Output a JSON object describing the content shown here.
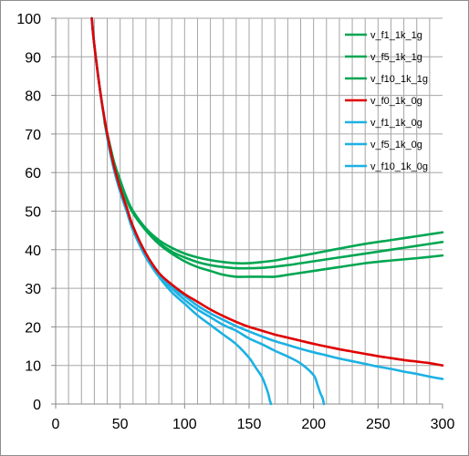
{
  "chart_data": {
    "type": "line",
    "title": "",
    "xlabel": "",
    "ylabel": "",
    "xlim": [
      0,
      300
    ],
    "ylim": [
      0,
      100
    ],
    "x_ticks": [
      0,
      50,
      100,
      150,
      200,
      250,
      300
    ],
    "y_ticks": [
      0,
      10,
      20,
      30,
      40,
      50,
      60,
      70,
      80,
      90,
      100
    ],
    "minor_x_step": 10,
    "grid": true,
    "legend_position": "top-right",
    "series": [
      {
        "name": "v_f1_1k_1g",
        "color": "#00A651",
        "x": [
          38,
          45,
          50,
          55,
          60,
          70,
          80,
          90,
          100,
          110,
          120,
          130,
          140,
          150,
          160,
          170,
          180,
          190,
          200,
          220,
          240,
          260,
          280,
          300
        ],
        "y": [
          73,
          63,
          58,
          53,
          49.5,
          45,
          41.5,
          39,
          37,
          35.5,
          34.5,
          33.5,
          33,
          33,
          33,
          33,
          33.5,
          34,
          34.5,
          35.5,
          36.5,
          37.2,
          37.8,
          38.5
        ]
      },
      {
        "name": "v_f5_1k_1g",
        "color": "#00A651",
        "x": [
          38,
          45,
          50,
          55,
          60,
          70,
          80,
          90,
          100,
          110,
          120,
          130,
          140,
          150,
          160,
          170,
          180,
          190,
          200,
          220,
          240,
          260,
          280,
          300
        ],
        "y": [
          73,
          63,
          58,
          53,
          49.5,
          45,
          41.8,
          39.5,
          38,
          36.8,
          36,
          35.5,
          35.2,
          35.2,
          35.3,
          35.6,
          36,
          36.5,
          37,
          38,
          39,
          40,
          41,
          42
        ]
      },
      {
        "name": "v_f10_1k_1g",
        "color": "#00A651",
        "x": [
          38,
          45,
          50,
          55,
          60,
          70,
          80,
          90,
          100,
          110,
          120,
          130,
          140,
          150,
          160,
          170,
          180,
          190,
          200,
          220,
          240,
          260,
          280,
          300
        ],
        "y": [
          73,
          63,
          58,
          53.5,
          50,
          45.5,
          42.5,
          40.5,
          39,
          38,
          37.3,
          36.8,
          36.5,
          36.5,
          36.8,
          37.2,
          37.8,
          38.4,
          39,
          40.3,
          41.5,
          42.5,
          43.5,
          44.5
        ]
      },
      {
        "name": "v_f0_1k_0g",
        "color": "#E00000",
        "x": [
          28,
          30,
          35,
          40,
          45,
          50,
          55,
          60,
          70,
          80,
          90,
          100,
          110,
          120,
          130,
          140,
          150,
          160,
          170,
          180,
          190,
          200,
          210,
          220,
          230,
          240,
          250,
          260,
          270,
          280,
          290,
          300
        ],
        "y": [
          100,
          93,
          80,
          70,
          62,
          56,
          51,
          46,
          39,
          34,
          31,
          28.5,
          26.5,
          24.5,
          22.8,
          21.3,
          20,
          19,
          18,
          17.2,
          16.4,
          15.6,
          14.9,
          14.2,
          13.6,
          13,
          12.4,
          11.9,
          11.4,
          11,
          10.6,
          10
        ]
      },
      {
        "name": "v_f1_1k_0g",
        "color": "#1CB1E4",
        "x": [
          28,
          30,
          35,
          40,
          45,
          50,
          55,
          60,
          70,
          80,
          90,
          100,
          110,
          120,
          130,
          140,
          150,
          155,
          160,
          163,
          165,
          166,
          167
        ],
        "y": [
          100,
          93,
          80,
          69,
          61,
          55,
          50,
          45,
          38,
          33,
          29,
          26,
          23,
          20.5,
          18,
          15.5,
          12,
          9.5,
          7,
          4.5,
          2.5,
          1,
          0
        ]
      },
      {
        "name": "v_f5_1k_0g",
        "color": "#1CB1E4",
        "x": [
          28,
          30,
          35,
          40,
          45,
          50,
          55,
          60,
          70,
          80,
          90,
          100,
          110,
          120,
          130,
          140,
          150,
          160,
          170,
          180,
          190,
          200,
          203,
          205,
          207,
          208
        ],
        "y": [
          100,
          93,
          80,
          69.5,
          61.5,
          55.5,
          50.5,
          46,
          38.5,
          33.5,
          30,
          27,
          24.5,
          22.5,
          20.5,
          19,
          17,
          15.5,
          13.8,
          12.3,
          10.5,
          7.5,
          5,
          3,
          1.5,
          0
        ]
      },
      {
        "name": "v_f10_1k_0g",
        "color": "#1CB1E4",
        "x": [
          28,
          30,
          35,
          40,
          45,
          50,
          55,
          60,
          70,
          80,
          90,
          100,
          110,
          120,
          130,
          140,
          150,
          160,
          170,
          180,
          190,
          200,
          210,
          220,
          230,
          240,
          250,
          260,
          270,
          280,
          290,
          300
        ],
        "y": [
          100,
          93,
          80,
          70,
          62,
          56,
          51,
          46,
          39,
          34,
          30.5,
          28,
          25.5,
          23.5,
          21.8,
          20.2,
          18.8,
          17.5,
          16.3,
          15.3,
          14.3,
          13.4,
          12.6,
          11.8,
          11.1,
          10.4,
          9.7,
          9.1,
          8.4,
          7.8,
          7.1,
          6.5
        ]
      }
    ]
  }
}
